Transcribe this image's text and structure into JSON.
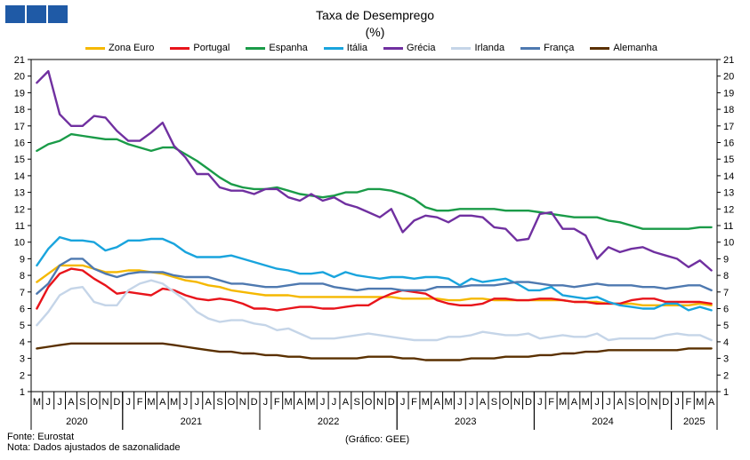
{
  "header": {
    "title": "Taxa de Desemprego",
    "subtitle": "(%)"
  },
  "footer": {
    "source": "Fonte: Eurostat",
    "note": "Nota: Dados ajustados de sazonalidade",
    "credit": "(Gráfico: GEE)"
  },
  "chart_data": {
    "type": "line",
    "title": "Taxa de Desemprego",
    "subtitle": "(%)",
    "ylim": [
      1,
      21
    ],
    "yticks": [
      1,
      2,
      3,
      4,
      5,
      6,
      7,
      8,
      9,
      10,
      11,
      12,
      13,
      14,
      15,
      16,
      17,
      18,
      19,
      20,
      21
    ],
    "grid": false,
    "legend_position": "top",
    "month_labels": [
      "M",
      "J",
      "J",
      "A",
      "S",
      "O",
      "N",
      "D",
      "J",
      "F",
      "M",
      "A",
      "M",
      "J",
      "J",
      "A",
      "S",
      "O",
      "N",
      "D",
      "J",
      "F",
      "M",
      "A",
      "M",
      "J",
      "J",
      "A",
      "S",
      "O",
      "N",
      "D",
      "J",
      "F",
      "M",
      "A",
      "M",
      "J",
      "J",
      "A",
      "S",
      "O",
      "N",
      "D",
      "J",
      "F",
      "M",
      "A",
      "M",
      "J",
      "J",
      "A",
      "S",
      "O",
      "N",
      "D",
      "J",
      "F",
      "M",
      "A"
    ],
    "years": [
      {
        "label": "2020",
        "start": 0,
        "count": 8
      },
      {
        "label": "2021",
        "start": 8,
        "count": 12
      },
      {
        "label": "2022",
        "start": 20,
        "count": 12
      },
      {
        "label": "2023",
        "start": 32,
        "count": 12
      },
      {
        "label": "2024",
        "start": 44,
        "count": 12
      },
      {
        "label": "2025",
        "start": 56,
        "count": 4
      }
    ],
    "series": [
      {
        "name": "Zona Euro",
        "color": "#f5b800",
        "values": [
          7.6,
          8.1,
          8.6,
          8.6,
          8.6,
          8.4,
          8.2,
          8.2,
          8.3,
          8.3,
          8.2,
          8.1,
          7.9,
          7.7,
          7.6,
          7.4,
          7.3,
          7.1,
          7.0,
          6.9,
          6.8,
          6.8,
          6.8,
          6.7,
          6.7,
          6.7,
          6.7,
          6.7,
          6.7,
          6.7,
          6.7,
          6.7,
          6.6,
          6.6,
          6.6,
          6.6,
          6.5,
          6.5,
          6.6,
          6.6,
          6.5,
          6.5,
          6.5,
          6.5,
          6.5,
          6.5,
          6.5,
          6.4,
          6.4,
          6.4,
          6.3,
          6.3,
          6.3,
          6.2,
          6.2,
          6.2,
          6.2,
          6.2,
          6.3,
          6.2
        ]
      },
      {
        "name": "Portugal",
        "color": "#e8141b",
        "values": [
          6.0,
          7.3,
          8.1,
          8.4,
          8.3,
          7.8,
          7.4,
          6.9,
          7.0,
          6.9,
          6.8,
          7.2,
          7.1,
          6.8,
          6.6,
          6.5,
          6.6,
          6.5,
          6.3,
          6.0,
          6.0,
          5.9,
          6.0,
          6.1,
          6.1,
          6.0,
          6.0,
          6.1,
          6.2,
          6.2,
          6.6,
          6.9,
          7.1,
          7.0,
          6.9,
          6.5,
          6.3,
          6.2,
          6.2,
          6.3,
          6.6,
          6.6,
          6.5,
          6.5,
          6.6,
          6.6,
          6.5,
          6.4,
          6.4,
          6.3,
          6.3,
          6.3,
          6.5,
          6.6,
          6.6,
          6.4,
          6.4,
          6.4,
          6.4,
          6.3
        ]
      },
      {
        "name": "Espanha",
        "color": "#1a9b48",
        "values": [
          15.5,
          15.9,
          16.1,
          16.5,
          16.4,
          16.3,
          16.2,
          16.2,
          15.9,
          15.7,
          15.5,
          15.7,
          15.7,
          15.3,
          14.9,
          14.4,
          13.9,
          13.5,
          13.3,
          13.2,
          13.2,
          13.3,
          13.1,
          12.9,
          12.8,
          12.7,
          12.8,
          13.0,
          13.0,
          13.2,
          13.2,
          13.1,
          12.9,
          12.6,
          12.1,
          11.9,
          11.9,
          12.0,
          12.0,
          12.0,
          12.0,
          11.9,
          11.9,
          11.9,
          11.8,
          11.7,
          11.6,
          11.5,
          11.5,
          11.5,
          11.3,
          11.2,
          11.0,
          10.8,
          10.8,
          10.8,
          10.8,
          10.8,
          10.9,
          10.9
        ]
      },
      {
        "name": "Itália",
        "color": "#19a4dd",
        "values": [
          8.6,
          9.6,
          10.3,
          10.1,
          10.1,
          10.0,
          9.5,
          9.7,
          10.1,
          10.1,
          10.2,
          10.2,
          9.9,
          9.4,
          9.1,
          9.1,
          9.1,
          9.2,
          9.0,
          8.8,
          8.6,
          8.4,
          8.3,
          8.1,
          8.1,
          8.2,
          7.9,
          8.2,
          8.0,
          7.9,
          7.8,
          7.9,
          7.9,
          7.8,
          7.9,
          7.9,
          7.8,
          7.4,
          7.8,
          7.6,
          7.7,
          7.8,
          7.5,
          7.1,
          7.1,
          7.3,
          6.8,
          6.7,
          6.6,
          6.7,
          6.4,
          6.2,
          6.1,
          6.0,
          6.0,
          6.3,
          6.3,
          5.9,
          6.1,
          5.9
        ]
      },
      {
        "name": "Grécia",
        "color": "#7030a0",
        "values": [
          19.6,
          20.3,
          17.7,
          17.0,
          17.0,
          17.6,
          17.5,
          16.7,
          16.1,
          16.1,
          16.6,
          17.2,
          15.8,
          15.1,
          14.1,
          14.1,
          13.3,
          13.1,
          13.1,
          12.9,
          13.2,
          13.2,
          12.7,
          12.5,
          12.9,
          12.5,
          12.7,
          12.3,
          12.1,
          11.8,
          11.5,
          12.0,
          10.6,
          11.3,
          11.6,
          11.5,
          11.2,
          11.6,
          11.6,
          11.5,
          10.9,
          10.8,
          10.1,
          10.2,
          11.7,
          11.8,
          10.8,
          10.8,
          10.4,
          9.0,
          9.7,
          9.4,
          9.6,
          9.7,
          9.4,
          9.2,
          9.0,
          8.5,
          8.9,
          8.3
        ]
      },
      {
        "name": "Irlanda",
        "color": "#c5d5e8",
        "values": [
          5.0,
          5.8,
          6.8,
          7.2,
          7.3,
          6.4,
          6.2,
          6.2,
          7.1,
          7.5,
          7.7,
          7.5,
          7.0,
          6.5,
          5.8,
          5.4,
          5.2,
          5.3,
          5.3,
          5.1,
          5.0,
          4.7,
          4.8,
          4.5,
          4.2,
          4.2,
          4.2,
          4.3,
          4.4,
          4.5,
          4.4,
          4.3,
          4.2,
          4.1,
          4.1,
          4.1,
          4.3,
          4.3,
          4.4,
          4.6,
          4.5,
          4.4,
          4.4,
          4.5,
          4.2,
          4.3,
          4.4,
          4.3,
          4.3,
          4.5,
          4.1,
          4.2,
          4.2,
          4.2,
          4.2,
          4.4,
          4.5,
          4.4,
          4.4,
          4.1
        ]
      },
      {
        "name": "França",
        "color": "#4e79b0",
        "values": [
          6.9,
          7.5,
          8.6,
          9.0,
          9.0,
          8.4,
          8.1,
          7.9,
          8.1,
          8.2,
          8.2,
          8.2,
          8.0,
          7.9,
          7.9,
          7.9,
          7.7,
          7.5,
          7.5,
          7.4,
          7.3,
          7.3,
          7.4,
          7.5,
          7.5,
          7.5,
          7.3,
          7.2,
          7.1,
          7.2,
          7.2,
          7.2,
          7.1,
          7.1,
          7.1,
          7.3,
          7.3,
          7.3,
          7.4,
          7.4,
          7.4,
          7.5,
          7.6,
          7.6,
          7.5,
          7.4,
          7.4,
          7.3,
          7.4,
          7.5,
          7.4,
          7.4,
          7.4,
          7.3,
          7.3,
          7.2,
          7.3,
          7.4,
          7.4,
          7.1
        ]
      },
      {
        "name": "Alemanha",
        "color": "#5a3000",
        "values": [
          3.6,
          3.7,
          3.8,
          3.9,
          3.9,
          3.9,
          3.9,
          3.9,
          3.9,
          3.9,
          3.9,
          3.9,
          3.8,
          3.7,
          3.6,
          3.5,
          3.4,
          3.4,
          3.3,
          3.3,
          3.2,
          3.2,
          3.1,
          3.1,
          3.0,
          3.0,
          3.0,
          3.0,
          3.0,
          3.1,
          3.1,
          3.1,
          3.0,
          3.0,
          2.9,
          2.9,
          2.9,
          2.9,
          3.0,
          3.0,
          3.0,
          3.1,
          3.1,
          3.1,
          3.2,
          3.2,
          3.3,
          3.3,
          3.4,
          3.4,
          3.5,
          3.5,
          3.5,
          3.5,
          3.5,
          3.5,
          3.5,
          3.6,
          3.6,
          3.6
        ]
      }
    ]
  }
}
